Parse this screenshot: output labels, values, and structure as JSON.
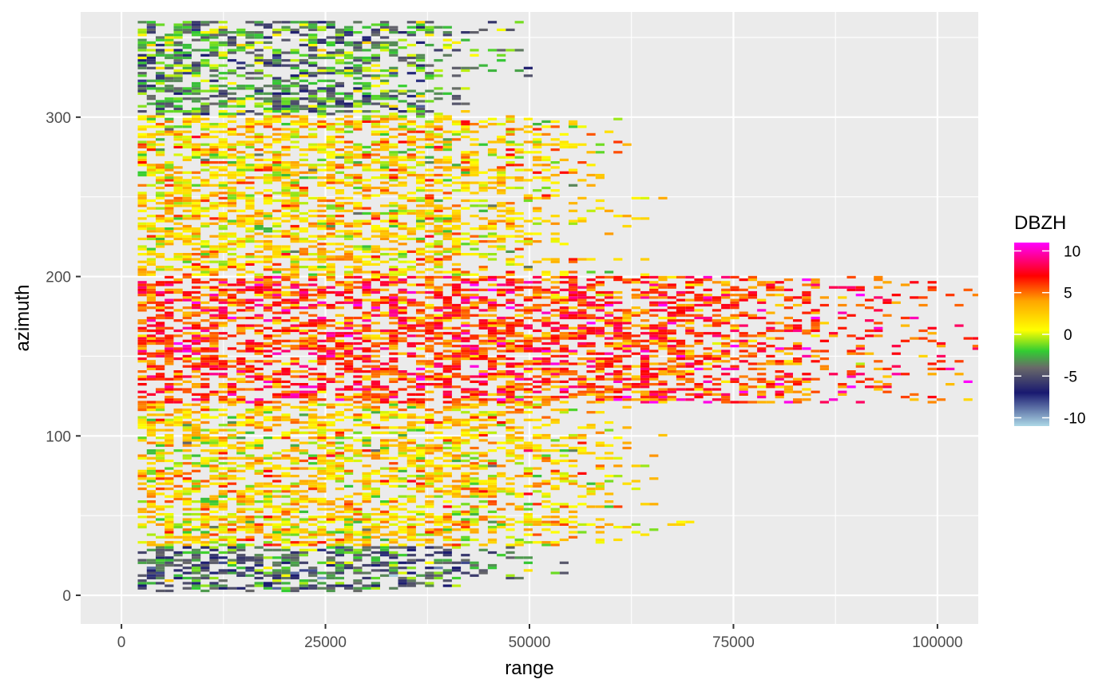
{
  "chart_data": {
    "type": "heatmap",
    "title": "",
    "xlabel": "range",
    "ylabel": "azimuth",
    "xlim": [
      -5000,
      105000
    ],
    "ylim": [
      -18,
      366
    ],
    "x_ticks": [
      0,
      25000,
      50000,
      75000,
      100000
    ],
    "x_tick_labels": [
      "0",
      "25000",
      "50000",
      "75000",
      "100000"
    ],
    "y_ticks": [
      0,
      100,
      200,
      300
    ],
    "y_tick_labels": [
      "0",
      "100",
      "200",
      "300"
    ],
    "grid": true,
    "panel_background": "#ebebeb",
    "grid_color": "#ffffff",
    "legend": {
      "title": "DBZH",
      "placement": "right",
      "range": [
        -11,
        11
      ],
      "ticks": [
        10,
        5,
        0,
        -5,
        -10
      ],
      "tick_labels": [
        "10",
        "5",
        "0",
        "-5",
        "-10"
      ],
      "color_stops": [
        {
          "value": -11,
          "color": "#add8e6"
        },
        {
          "value": -7,
          "color": "#191970"
        },
        {
          "value": -4,
          "color": "#696969"
        },
        {
          "value": -2,
          "color": "#32cd32"
        },
        {
          "value": 0.5,
          "color": "#ffff00"
        },
        {
          "value": 4,
          "color": "#ffa500"
        },
        {
          "value": 7,
          "color": "#ff0000"
        },
        {
          "value": 11,
          "color": "#ff00ff"
        }
      ]
    },
    "regions_summary": [
      {
        "azimuth_range": [
          0,
          30
        ],
        "range_extent": [
          2000,
          50000
        ],
        "typical_dbzh": -4
      },
      {
        "azimuth_range": [
          30,
          120
        ],
        "range_extent": [
          2000,
          65000
        ],
        "typical_dbzh": 2
      },
      {
        "azimuth_range": [
          120,
          200
        ],
        "range_extent": [
          40000,
          105000
        ],
        "typical_dbzh": 6
      },
      {
        "azimuth_range": [
          200,
          300
        ],
        "range_extent": [
          2000,
          60000
        ],
        "typical_dbzh": 2
      },
      {
        "azimuth_range": [
          300,
          360
        ],
        "range_extent": [
          2000,
          45000
        ],
        "typical_dbzh": -3
      }
    ]
  }
}
